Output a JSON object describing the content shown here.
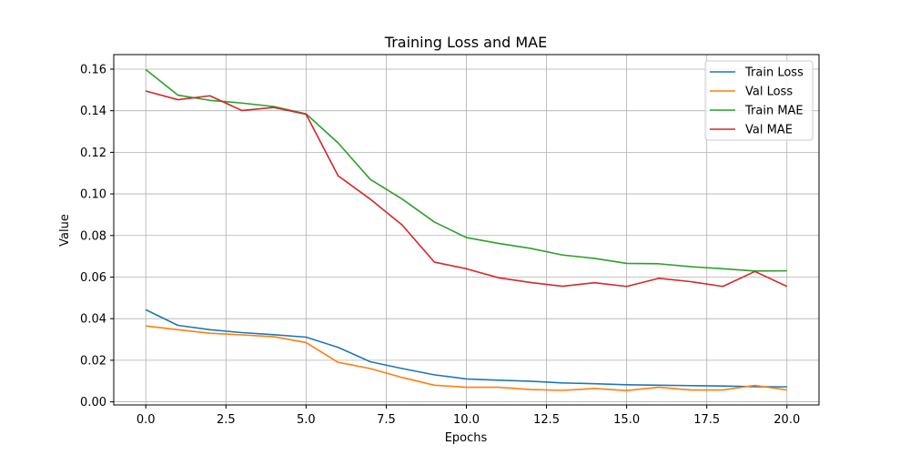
{
  "chart_data": {
    "type": "line",
    "title": "Training Loss and MAE",
    "xlabel": "Epochs",
    "ylabel": "Value",
    "xlim": [
      -1,
      21
    ],
    "ylim": [
      -0.0015,
      0.167
    ],
    "x_ticks": [
      0.0,
      2.5,
      5.0,
      7.5,
      10.0,
      12.5,
      15.0,
      17.5,
      20.0
    ],
    "x_tick_labels": [
      "0.0",
      "2.5",
      "5.0",
      "7.5",
      "10.0",
      "12.5",
      "15.0",
      "17.5",
      "20.0"
    ],
    "y_ticks": [
      0.0,
      0.02,
      0.04,
      0.06,
      0.08,
      0.1,
      0.12,
      0.14,
      0.16
    ],
    "y_tick_labels": [
      "0.00",
      "0.02",
      "0.04",
      "0.06",
      "0.08",
      "0.10",
      "0.12",
      "0.14",
      "0.16"
    ],
    "grid": true,
    "legend_position": "top-right",
    "x": [
      0,
      1,
      2,
      3,
      4,
      5,
      6,
      7,
      8,
      9,
      10,
      11,
      12,
      13,
      14,
      15,
      16,
      17,
      18,
      19,
      20
    ],
    "series": [
      {
        "name": "Train Loss",
        "color": "#1f77b4",
        "values": [
          0.0443,
          0.0368,
          0.0347,
          0.0333,
          0.0323,
          0.0311,
          0.0262,
          0.0193,
          0.016,
          0.013,
          0.011,
          0.0104,
          0.0099,
          0.0091,
          0.0087,
          0.0082,
          0.008,
          0.0078,
          0.0076,
          0.0073,
          0.0072
        ]
      },
      {
        "name": "Val Loss",
        "color": "#ff7f0e",
        "values": [
          0.0365,
          0.0347,
          0.033,
          0.0322,
          0.0313,
          0.0285,
          0.019,
          0.016,
          0.0117,
          0.008,
          0.007,
          0.007,
          0.0059,
          0.0055,
          0.0064,
          0.0054,
          0.007,
          0.0057,
          0.0057,
          0.0079,
          0.0057
        ]
      },
      {
        "name": "Train MAE",
        "color": "#2ca02c",
        "values": [
          0.1598,
          0.1475,
          0.145,
          0.1437,
          0.142,
          0.1385,
          0.1245,
          0.107,
          0.0975,
          0.0865,
          0.079,
          0.0762,
          0.0738,
          0.0706,
          0.069,
          0.0666,
          0.0664,
          0.065,
          0.064,
          0.0629,
          0.063
        ]
      },
      {
        "name": "Val MAE",
        "color": "#d62728",
        "values": [
          0.1495,
          0.1453,
          0.1472,
          0.1401,
          0.1416,
          0.1383,
          0.1087,
          0.0975,
          0.085,
          0.0672,
          0.064,
          0.0597,
          0.0574,
          0.0556,
          0.0573,
          0.0555,
          0.0594,
          0.0578,
          0.0555,
          0.0627,
          0.0555
        ]
      }
    ]
  }
}
